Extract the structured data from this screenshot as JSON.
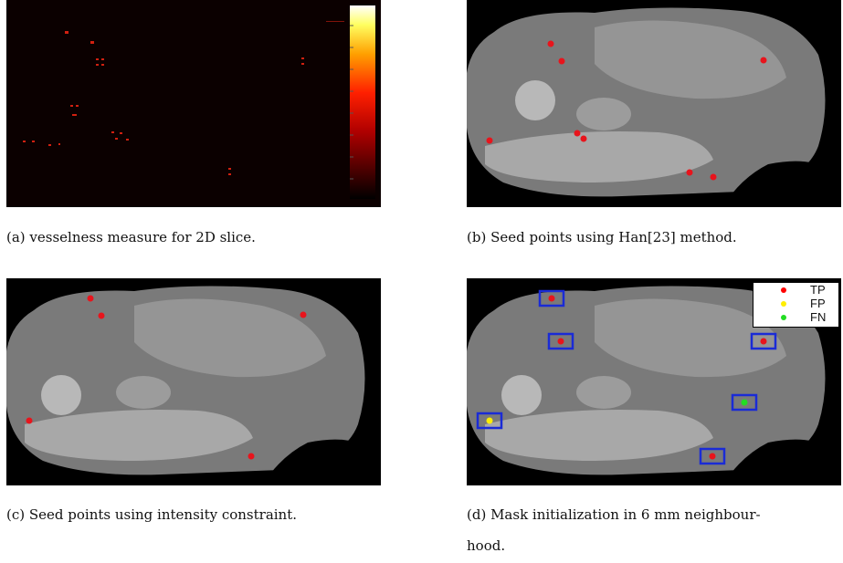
{
  "figure": {
    "panels": [
      {
        "id": "a",
        "caption": "(a) vesselness measure for 2D slice."
      },
      {
        "id": "b",
        "caption": "(b) Seed points using Han[23] method."
      },
      {
        "id": "c",
        "caption": "(c) Seed points using intensity constraint."
      },
      {
        "id": "d",
        "caption_line1": "(d) Mask initialization in 6 mm neighbour-",
        "caption_line2": "hood."
      }
    ],
    "legend": {
      "entries": [
        {
          "label": "TP",
          "color": "#ff0000"
        },
        {
          "label": "FP",
          "color": "#ffee00"
        },
        {
          "label": "FN",
          "color": "#22dd22"
        }
      ]
    },
    "colors": {
      "seed_point": "#e8141c",
      "box": "#1a2bd6",
      "colorbar_top": "#ffffff",
      "colorbar_bottom": "#000000"
    }
  }
}
